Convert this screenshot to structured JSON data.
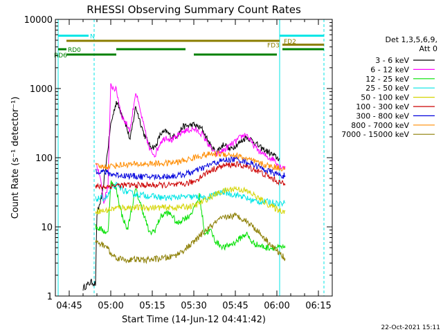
{
  "chart_data": {
    "type": "line",
    "title": "RHESSI Observing Summary Count Rates",
    "xlabel": "Start Time (14-Jun-12 04:41:42)",
    "ylabel": "Count Rate (s⁻¹ detector⁻¹)",
    "y_scale": "log",
    "ylim": [
      1,
      10000
    ],
    "xlim_minutes": [
      280,
      380
    ],
    "x_ticks": [
      {
        "label": "04:45",
        "minute": 285
      },
      {
        "label": "05:00",
        "minute": 300
      },
      {
        "label": "05:15",
        "minute": 315
      },
      {
        "label": "05:30",
        "minute": 330
      },
      {
        "label": "05:45",
        "minute": 345
      },
      {
        "label": "06:00",
        "minute": 360
      },
      {
        "label": "06:15",
        "minute": 375
      }
    ],
    "y_ticks": [
      {
        "label": "1",
        "value": 1
      },
      {
        "label": "10",
        "value": 10
      },
      {
        "label": "100",
        "value": 100
      },
      {
        "label": "1000",
        "value": 1000
      },
      {
        "label": "10000",
        "value": 10000
      }
    ],
    "legend_header": [
      "Det 1,3,5,6,9,",
      "Att 0"
    ],
    "legend_position": "right",
    "series": [
      {
        "name": "3 - 6 keV",
        "color": "#000000",
        "points": [
          [
            290,
            1.3
          ],
          [
            293,
            1.6
          ],
          [
            294.5,
            1.5
          ],
          [
            295,
            15
          ],
          [
            297,
            30
          ],
          [
            300,
            300
          ],
          [
            302,
            650
          ],
          [
            305,
            350
          ],
          [
            307,
            180
          ],
          [
            309,
            550
          ],
          [
            312,
            220
          ],
          [
            314,
            150
          ],
          [
            316,
            140
          ],
          [
            318,
            220
          ],
          [
            320,
            240
          ],
          [
            322,
            200
          ],
          [
            324,
            210
          ],
          [
            326,
            280
          ],
          [
            330,
            300
          ],
          [
            333,
            260
          ],
          [
            336,
            150
          ],
          [
            338,
            120
          ],
          [
            341,
            160
          ],
          [
            343,
            130
          ],
          [
            345,
            150
          ],
          [
            347,
            170
          ],
          [
            349,
            200
          ],
          [
            351,
            180
          ],
          [
            354,
            140
          ],
          [
            357,
            120
          ],
          [
            360,
            100
          ],
          [
            361,
            95
          ]
        ]
      },
      {
        "name": "6 - 12 keV",
        "color": "#ff00ff",
        "points": [
          [
            294.5,
            80
          ],
          [
            296,
            60
          ],
          [
            297.5,
            22
          ],
          [
            299,
            40
          ],
          [
            300,
            1100
          ],
          [
            302,
            950
          ],
          [
            304,
            400
          ],
          [
            307,
            250
          ],
          [
            309,
            900
          ],
          [
            312,
            280
          ],
          [
            314,
            130
          ],
          [
            316,
            110
          ],
          [
            318,
            170
          ],
          [
            320,
            200
          ],
          [
            322,
            180
          ],
          [
            324,
            200
          ],
          [
            326,
            240
          ],
          [
            330,
            260
          ],
          [
            333,
            220
          ],
          [
            336,
            140
          ],
          [
            338,
            110
          ],
          [
            341,
            130
          ],
          [
            343,
            150
          ],
          [
            345,
            170
          ],
          [
            347,
            200
          ],
          [
            349,
            220
          ],
          [
            351,
            160
          ],
          [
            354,
            120
          ],
          [
            357,
            100
          ],
          [
            359,
            95
          ],
          [
            361,
            75
          ],
          [
            362,
            75
          ],
          [
            363,
            75
          ]
        ]
      },
      {
        "name": "12 - 25 keV",
        "color": "#00e000",
        "points": [
          [
            294.5,
            10
          ],
          [
            297,
            9
          ],
          [
            299,
            8
          ],
          [
            300,
            45
          ],
          [
            302,
            35
          ],
          [
            304,
            15
          ],
          [
            306,
            9
          ],
          [
            309,
            35
          ],
          [
            312,
            15
          ],
          [
            314,
            8
          ],
          [
            316,
            9
          ],
          [
            318,
            14
          ],
          [
            320,
            16
          ],
          [
            322,
            15
          ],
          [
            324,
            11
          ],
          [
            326,
            13
          ],
          [
            328,
            14
          ],
          [
            330,
            18
          ],
          [
            332,
            28
          ],
          [
            334,
            8
          ],
          [
            336,
            9
          ],
          [
            338,
            6
          ],
          [
            341,
            5
          ],
          [
            343,
            5.5
          ],
          [
            345,
            6
          ],
          [
            347,
            7
          ],
          [
            349,
            8
          ],
          [
            351,
            6
          ],
          [
            353,
            5.5
          ],
          [
            356,
            5
          ],
          [
            359,
            5
          ],
          [
            361,
            5
          ],
          [
            363,
            5
          ]
        ]
      },
      {
        "name": "25 - 50 keV",
        "color": "#00e5e5",
        "points": [
          [
            294.5,
            25
          ],
          [
            296,
            26
          ],
          [
            297.5,
            26
          ],
          [
            299,
            28
          ],
          [
            300,
            35
          ],
          [
            302,
            40
          ],
          [
            305,
            33
          ],
          [
            308,
            30
          ],
          [
            311,
            29
          ],
          [
            314,
            28
          ],
          [
            317,
            27
          ],
          [
            320,
            26
          ],
          [
            324,
            27
          ],
          [
            328,
            27
          ],
          [
            331,
            27
          ],
          [
            333,
            27
          ],
          [
            334,
            25
          ],
          [
            336,
            28
          ],
          [
            338,
            30
          ],
          [
            341,
            32
          ],
          [
            343,
            30
          ],
          [
            345,
            29
          ],
          [
            347,
            28
          ],
          [
            349,
            26
          ],
          [
            351,
            24
          ],
          [
            354,
            23
          ],
          [
            357,
            23
          ],
          [
            360,
            22
          ],
          [
            363,
            22
          ]
        ]
      },
      {
        "name": "50 - 100 keV",
        "color": "#d4d400",
        "points": [
          [
            294.5,
            17
          ],
          [
            298,
            17
          ],
          [
            300,
            18
          ],
          [
            303,
            19
          ],
          [
            306,
            19
          ],
          [
            309,
            19
          ],
          [
            312,
            19
          ],
          [
            315,
            19
          ],
          [
            318,
            19
          ],
          [
            321,
            19
          ],
          [
            324,
            19
          ],
          [
            327,
            19.5
          ],
          [
            330,
            20
          ],
          [
            333,
            23
          ],
          [
            336,
            27
          ],
          [
            339,
            31
          ],
          [
            342,
            34
          ],
          [
            345,
            36
          ],
          [
            348,
            34
          ],
          [
            351,
            30
          ],
          [
            354,
            25
          ],
          [
            357,
            21
          ],
          [
            360,
            18
          ],
          [
            362,
            17
          ],
          [
            363,
            17
          ]
        ]
      },
      {
        "name": "100 - 300 keV",
        "color": "#cc0000",
        "points": [
          [
            294.5,
            38
          ],
          [
            298,
            38
          ],
          [
            300,
            39
          ],
          [
            303,
            40
          ],
          [
            306,
            40
          ],
          [
            309,
            40
          ],
          [
            312,
            40
          ],
          [
            315,
            40
          ],
          [
            318,
            40
          ],
          [
            321,
            40
          ],
          [
            324,
            40
          ],
          [
            327,
            42
          ],
          [
            330,
            45
          ],
          [
            333,
            55
          ],
          [
            336,
            65
          ],
          [
            339,
            73
          ],
          [
            342,
            78
          ],
          [
            345,
            80
          ],
          [
            348,
            76
          ],
          [
            351,
            70
          ],
          [
            354,
            62
          ],
          [
            357,
            53
          ],
          [
            360,
            46
          ],
          [
            362,
            42
          ],
          [
            363,
            42
          ]
        ]
      },
      {
        "name": "300 - 800 keV",
        "color": "#0000dd",
        "points": [
          [
            294.5,
            65
          ],
          [
            298,
            62
          ],
          [
            300,
            58
          ],
          [
            303,
            56
          ],
          [
            306,
            55
          ],
          [
            309,
            54
          ],
          [
            312,
            53
          ],
          [
            315,
            53
          ],
          [
            318,
            53
          ],
          [
            321,
            54
          ],
          [
            324,
            55
          ],
          [
            327,
            58
          ],
          [
            330,
            63
          ],
          [
            333,
            70
          ],
          [
            336,
            80
          ],
          [
            339,
            88
          ],
          [
            342,
            93
          ],
          [
            345,
            95
          ],
          [
            348,
            90
          ],
          [
            351,
            82
          ],
          [
            354,
            72
          ],
          [
            357,
            64
          ],
          [
            360,
            58
          ],
          [
            362,
            55
          ],
          [
            363,
            55
          ]
        ]
      },
      {
        "name": "800 - 7000 keV",
        "color": "#ff8c00",
        "points": [
          [
            294.5,
            75
          ],
          [
            298,
            74
          ],
          [
            300,
            76
          ],
          [
            303,
            78
          ],
          [
            306,
            80
          ],
          [
            309,
            80
          ],
          [
            312,
            81
          ],
          [
            315,
            82
          ],
          [
            318,
            82
          ],
          [
            321,
            84
          ],
          [
            324,
            86
          ],
          [
            327,
            92
          ],
          [
            330,
            100
          ],
          [
            333,
            108
          ],
          [
            336,
            112
          ],
          [
            339,
            114
          ],
          [
            342,
            112
          ],
          [
            345,
            108
          ],
          [
            348,
            100
          ],
          [
            351,
            90
          ],
          [
            354,
            82
          ],
          [
            357,
            76
          ],
          [
            360,
            72
          ],
          [
            362,
            70
          ],
          [
            363,
            70
          ]
        ]
      },
      {
        "name": "7000 - 15000 keV",
        "color": "#8b7d00",
        "points": [
          [
            294.5,
            6
          ],
          [
            297,
            5.5
          ],
          [
            299,
            5
          ],
          [
            300,
            4
          ],
          [
            303,
            3.5
          ],
          [
            306,
            3.3
          ],
          [
            309,
            3.4
          ],
          [
            312,
            3.3
          ],
          [
            315,
            3.4
          ],
          [
            318,
            3.5
          ],
          [
            321,
            3.6
          ],
          [
            324,
            4
          ],
          [
            327,
            4.8
          ],
          [
            330,
            6
          ],
          [
            333,
            8
          ],
          [
            336,
            10
          ],
          [
            339,
            12.5
          ],
          [
            342,
            14
          ],
          [
            345,
            14.5
          ],
          [
            348,
            13
          ],
          [
            351,
            10.5
          ],
          [
            354,
            8
          ],
          [
            357,
            6
          ],
          [
            360,
            4.5
          ],
          [
            362,
            3.8
          ],
          [
            363,
            3.5
          ]
        ]
      }
    ],
    "status_bars": [
      {
        "label": "N",
        "color": "#00e5e5",
        "level": 5800,
        "segments": [
          [
            281,
            292
          ],
          [
            361,
            377
          ]
        ],
        "label_minute": 292
      },
      {
        "label": "FD2",
        "color": "#8b7d00",
        "level": 4900,
        "segments": [
          [
            284,
            361
          ]
        ],
        "label_minute": 362
      },
      {
        "label": "FD3",
        "color": "#8b7d00",
        "level": 4300,
        "segments": [
          [
            362,
            377
          ]
        ],
        "label_minute": 356
      },
      {
        "label": "RD0",
        "color": "#008000",
        "level": 3700,
        "segments": [
          [
            281,
            284
          ],
          [
            302,
            327
          ],
          [
            362,
            377
          ]
        ],
        "label_minute": 284
      },
      {
        "label": "RD6",
        "color": "#008000",
        "level": 3100,
        "segments": [
          [
            284,
            302
          ],
          [
            330,
            360
          ]
        ],
        "label_minute": 279
      }
    ],
    "vertical_markers": [
      {
        "minute": 281,
        "style": "solid"
      },
      {
        "minute": 294,
        "style": "dashed"
      },
      {
        "minute": 361,
        "style": "solid"
      },
      {
        "minute": 377,
        "style": "dashed"
      }
    ],
    "data_span_minutes": [
      294.5,
      363
    ],
    "footer_date": "22-Oct-2021 15:11"
  }
}
